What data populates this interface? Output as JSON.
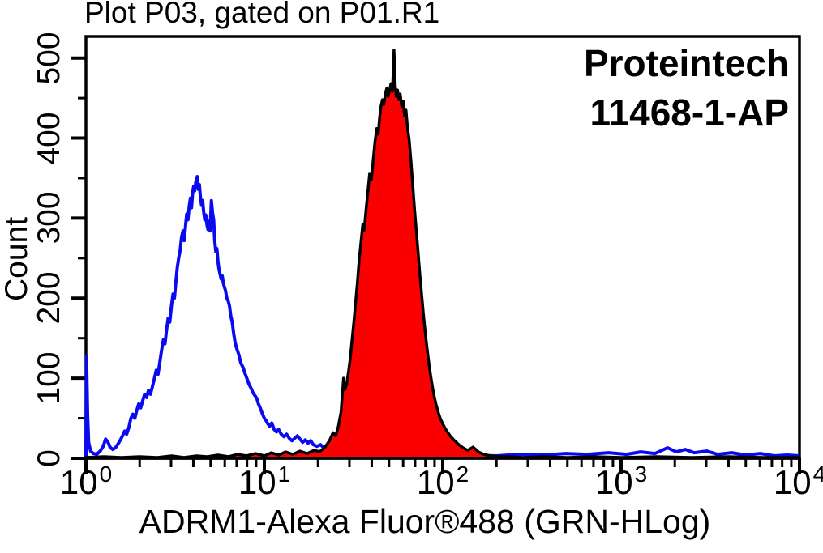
{
  "annotation": {
    "line1": "Proteintech",
    "line2": "11468-1-AP"
  },
  "chart_data": {
    "type": "area",
    "title": "Plot P03, gated on P01.R1",
    "xlabel": "ADRM1-Alexa Fluor®488 (GRN-HLog)",
    "ylabel": "Count",
    "x_scale": "log10",
    "xlim": [
      1,
      10000
    ],
    "ylim": [
      0,
      527
    ],
    "grid": false,
    "legend": "none",
    "x_tick_base": "10",
    "x_tick_exponents": [
      0,
      1,
      2,
      3,
      4
    ],
    "y_major_ticks": [
      0,
      100,
      200,
      300,
      400,
      500
    ],
    "y_minor_ticks": [
      50,
      150,
      250,
      350,
      450
    ],
    "series": [
      {
        "name": "blue-open-histogram-control",
        "color": "#0a0af0",
        "fill": "none",
        "peak": {
          "x": 4.2,
          "count": 352
        },
        "points_log10x_count": [
          [
            0,
            2
          ],
          [
            0.003,
            128
          ],
          [
            0.009,
            55
          ],
          [
            0.015,
            20
          ],
          [
            0.026,
            9
          ],
          [
            0.042,
            6
          ],
          [
            0.06,
            5
          ],
          [
            0.08,
            9
          ],
          [
            0.097,
            15
          ],
          [
            0.11,
            24
          ],
          [
            0.122,
            21
          ],
          [
            0.135,
            14
          ],
          [
            0.15,
            11
          ],
          [
            0.165,
            13
          ],
          [
            0.18,
            18
          ],
          [
            0.193,
            23
          ],
          [
            0.205,
            28
          ],
          [
            0.217,
            34
          ],
          [
            0.228,
            30
          ],
          [
            0.24,
            38
          ],
          [
            0.252,
            50
          ],
          [
            0.263,
            55
          ],
          [
            0.274,
            50
          ],
          [
            0.285,
            60
          ],
          [
            0.296,
            68
          ],
          [
            0.307,
            63
          ],
          [
            0.318,
            72
          ],
          [
            0.329,
            80
          ],
          [
            0.34,
            76
          ],
          [
            0.351,
            85
          ],
          [
            0.362,
            80
          ],
          [
            0.373,
            90
          ],
          [
            0.384,
            100
          ],
          [
            0.394,
            110
          ],
          [
            0.404,
            105
          ],
          [
            0.414,
            120
          ],
          [
            0.424,
            135
          ],
          [
            0.434,
            148
          ],
          [
            0.443,
            143
          ],
          [
            0.452,
            160
          ],
          [
            0.461,
            175
          ],
          [
            0.47,
            170
          ],
          [
            0.479,
            190
          ],
          [
            0.488,
            205
          ],
          [
            0.496,
            200
          ],
          [
            0.504,
            220
          ],
          [
            0.512,
            238
          ],
          [
            0.52,
            250
          ],
          [
            0.528,
            260
          ],
          [
            0.536,
            276
          ],
          [
            0.544,
            284
          ],
          [
            0.551,
            272
          ],
          [
            0.558,
            290
          ],
          [
            0.565,
            305
          ],
          [
            0.572,
            298
          ],
          [
            0.579,
            315
          ],
          [
            0.586,
            325
          ],
          [
            0.592,
            313
          ],
          [
            0.598,
            332
          ],
          [
            0.604,
            340
          ],
          [
            0.61,
            334
          ],
          [
            0.616,
            345
          ],
          [
            0.624,
            352
          ],
          [
            0.63,
            336
          ],
          [
            0.636,
            342
          ],
          [
            0.642,
            326
          ],
          [
            0.648,
            316
          ],
          [
            0.654,
            322
          ],
          [
            0.66,
            308
          ],
          [
            0.666,
            298
          ],
          [
            0.672,
            304
          ],
          [
            0.678,
            292
          ],
          [
            0.684,
            286
          ],
          [
            0.69,
            296
          ],
          [
            0.696,
            284
          ],
          [
            0.703,
            322
          ],
          [
            0.71,
            306
          ],
          [
            0.716,
            298
          ],
          [
            0.722,
            272
          ],
          [
            0.728,
            258
          ],
          [
            0.734,
            262
          ],
          [
            0.74,
            246
          ],
          [
            0.746,
            236
          ],
          [
            0.752,
            230
          ],
          [
            0.758,
            224
          ],
          [
            0.764,
            228
          ],
          [
            0.77,
            219
          ],
          [
            0.776,
            214
          ],
          [
            0.782,
            210
          ],
          [
            0.79,
            200
          ],
          [
            0.798,
            196
          ],
          [
            0.805,
            190
          ],
          [
            0.812,
            178
          ],
          [
            0.82,
            170
          ],
          [
            0.828,
            156
          ],
          [
            0.836,
            145
          ],
          [
            0.844,
            138
          ],
          [
            0.852,
            133
          ],
          [
            0.859,
            128
          ],
          [
            0.867,
            120
          ],
          [
            0.875,
            116
          ],
          [
            0.882,
            113
          ],
          [
            0.89,
            107
          ],
          [
            0.897,
            103
          ],
          [
            0.905,
            98
          ],
          [
            0.913,
            93
          ],
          [
            0.92,
            90
          ],
          [
            0.927,
            87
          ],
          [
            0.936,
            82
          ],
          [
            0.945,
            79
          ],
          [
            0.952,
            77
          ],
          [
            0.959,
            74
          ],
          [
            0.967,
            68
          ],
          [
            0.975,
            64
          ],
          [
            0.982,
            60
          ],
          [
            0.99,
            55
          ],
          [
            1,
            50
          ],
          [
            1.01,
            47
          ],
          [
            1.02,
            43
          ],
          [
            1.03,
            40
          ],
          [
            1.042,
            44
          ],
          [
            1.055,
            36
          ],
          [
            1.068,
            33
          ],
          [
            1.08,
            36
          ],
          [
            1.095,
            30
          ],
          [
            1.11,
            27
          ],
          [
            1.125,
            30
          ],
          [
            1.14,
            25
          ],
          [
            1.155,
            22
          ],
          [
            1.17,
            25
          ],
          [
            1.185,
            28
          ],
          [
            1.2,
            24
          ],
          [
            1.215,
            20
          ],
          [
            1.23,
            23
          ],
          [
            1.245,
            19
          ],
          [
            1.26,
            22
          ],
          [
            1.275,
            17
          ],
          [
            1.295,
            15
          ],
          [
            1.315,
            17
          ],
          [
            1.335,
            13
          ],
          [
            1.36,
            11
          ],
          [
            1.385,
            12
          ],
          [
            1.41,
            9
          ],
          [
            1.45,
            7
          ],
          [
            1.51,
            5
          ],
          [
            1.59,
            4
          ],
          [
            1.7,
            3
          ],
          [
            1.85,
            4
          ],
          [
            2,
            3
          ],
          [
            2.15,
            4
          ],
          [
            2.3,
            3
          ],
          [
            2.43,
            5
          ],
          [
            2.56,
            4
          ],
          [
            2.69,
            6
          ],
          [
            2.81,
            5
          ],
          [
            2.93,
            7
          ],
          [
            3.03,
            5
          ],
          [
            3.11,
            8
          ],
          [
            3.19,
            6
          ],
          [
            3.26,
            13
          ],
          [
            3.31,
            8
          ],
          [
            3.36,
            11
          ],
          [
            3.41,
            7
          ],
          [
            3.48,
            9
          ],
          [
            3.54,
            5
          ],
          [
            3.62,
            7
          ],
          [
            3.7,
            4
          ],
          [
            3.78,
            6
          ],
          [
            3.86,
            3
          ],
          [
            3.93,
            4
          ],
          [
            4,
            3
          ]
        ]
      },
      {
        "name": "red-filled-histogram-stained",
        "color": "#fa0000",
        "fill": "#fa0000",
        "outline": "#000000",
        "peak": {
          "x": 53,
          "count": 510
        },
        "points_log10x_count": [
          [
            0,
            1
          ],
          [
            0.1,
            2
          ],
          [
            0.2,
            1
          ],
          [
            0.3,
            2
          ],
          [
            0.4,
            1
          ],
          [
            0.48,
            3
          ],
          [
            0.55,
            1
          ],
          [
            0.62,
            3
          ],
          [
            0.68,
            2
          ],
          [
            0.74,
            4
          ],
          [
            0.8,
            2
          ],
          [
            0.85,
            5
          ],
          [
            0.9,
            3
          ],
          [
            0.95,
            6
          ],
          [
            1,
            3
          ],
          [
            1.04,
            7
          ],
          [
            1.08,
            4
          ],
          [
            1.12,
            8
          ],
          [
            1.16,
            5
          ],
          [
            1.2,
            9
          ],
          [
            1.24,
            6
          ],
          [
            1.28,
            10
          ],
          [
            1.31,
            8
          ],
          [
            1.34,
            14
          ],
          [
            1.365,
            22
          ],
          [
            1.385,
            32
          ],
          [
            1.4,
            28
          ],
          [
            1.415,
            40
          ],
          [
            1.43,
            58
          ],
          [
            1.444,
            100
          ],
          [
            1.452,
            86
          ],
          [
            1.462,
            93
          ],
          [
            1.472,
            108
          ],
          [
            1.482,
            125
          ],
          [
            1.492,
            148
          ],
          [
            1.502,
            170
          ],
          [
            1.512,
            195
          ],
          [
            1.522,
            220
          ],
          [
            1.532,
            248
          ],
          [
            1.542,
            270
          ],
          [
            1.552,
            292
          ],
          [
            1.56,
            285
          ],
          [
            1.57,
            310
          ],
          [
            1.58,
            332
          ],
          [
            1.59,
            355
          ],
          [
            1.6,
            348
          ],
          [
            1.61,
            372
          ],
          [
            1.62,
            395
          ],
          [
            1.63,
            412
          ],
          [
            1.638,
            405
          ],
          [
            1.646,
            425
          ],
          [
            1.654,
            440
          ],
          [
            1.662,
            448
          ],
          [
            1.67,
            442
          ],
          [
            1.678,
            455
          ],
          [
            1.686,
            462
          ],
          [
            1.694,
            452
          ],
          [
            1.702,
            460
          ],
          [
            1.71,
            468
          ],
          [
            1.718,
            458
          ],
          [
            1.727,
            510
          ],
          [
            1.734,
            465
          ],
          [
            1.74,
            452
          ],
          [
            1.747,
            460
          ],
          [
            1.754,
            448
          ],
          [
            1.762,
            455
          ],
          [
            1.77,
            440
          ],
          [
            1.778,
            446
          ],
          [
            1.786,
            428
          ],
          [
            1.794,
            435
          ],
          [
            1.802,
            415
          ],
          [
            1.812,
            398
          ],
          [
            1.822,
            372
          ],
          [
            1.832,
            342
          ],
          [
            1.842,
            312
          ],
          [
            1.852,
            285
          ],
          [
            1.862,
            258
          ],
          [
            1.872,
            230
          ],
          [
            1.882,
            205
          ],
          [
            1.892,
            180
          ],
          [
            1.902,
            158
          ],
          [
            1.912,
            138
          ],
          [
            1.922,
            120
          ],
          [
            1.932,
            104
          ],
          [
            1.942,
            90
          ],
          [
            1.952,
            78
          ],
          [
            1.962,
            68
          ],
          [
            1.974,
            58
          ],
          [
            1.986,
            50
          ],
          [
            1.998,
            44
          ],
          [
            2.012,
            38
          ],
          [
            2.026,
            33
          ],
          [
            2.042,
            28
          ],
          [
            2.058,
            24
          ],
          [
            2.076,
            20
          ],
          [
            2.095,
            16
          ],
          [
            2.115,
            13
          ],
          [
            2.14,
            10
          ],
          [
            2.17,
            14
          ],
          [
            2.2,
            8
          ],
          [
            2.23,
            5
          ],
          [
            2.265,
            3
          ],
          [
            2.31,
            2
          ],
          [
            2.37,
            2
          ],
          [
            2.45,
            1
          ],
          [
            2.56,
            2
          ],
          [
            2.7,
            1
          ],
          [
            2.85,
            2
          ],
          [
            3,
            1
          ],
          [
            3.2,
            2
          ],
          [
            3.4,
            1
          ],
          [
            3.6,
            2
          ],
          [
            3.8,
            1
          ],
          [
            4,
            1
          ]
        ]
      }
    ]
  }
}
